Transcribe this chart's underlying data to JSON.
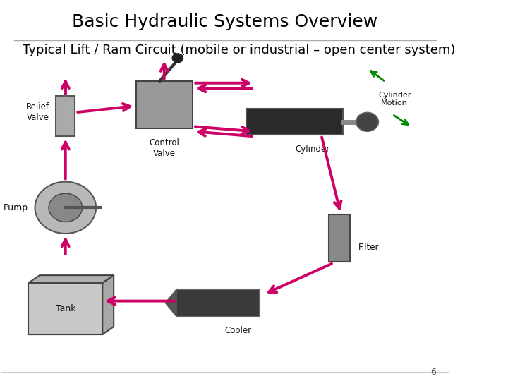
{
  "title": "Basic Hydraulic Systems Overview",
  "subtitle": "Typical Lift / Ram Circuit (mobile or industrial – open center system)",
  "background_color": "#ffffff",
  "title_fontsize": 18,
  "subtitle_fontsize": 13,
  "title_color": "#000000",
  "subtitle_color": "#000000",
  "arrow_color": "#cc0066",
  "arrow_color2": "#008800",
  "footer_line_color": "#cccccc",
  "page_number": "6"
}
